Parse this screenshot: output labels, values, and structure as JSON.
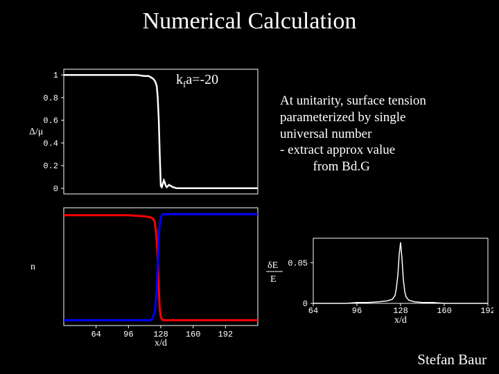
{
  "title": "Numerical Calculation",
  "annotation": "k_f a = -20",
  "description_lines": [
    "At unitarity, surface tension",
    "parameterized by single",
    "universal number",
    "- extract approx value",
    "          from Bd.G"
  ],
  "credit": "Stefan Baur",
  "chart_top": {
    "type": "line",
    "x": [
      32,
      40,
      48,
      56,
      64,
      72,
      80,
      88,
      96,
      104,
      112,
      116,
      118,
      120,
      122,
      123,
      124,
      125,
      126,
      127,
      128,
      129,
      130,
      131,
      132,
      133,
      134,
      136,
      138,
      140,
      144,
      152,
      160,
      168,
      176,
      184,
      192,
      200,
      208,
      216,
      224
    ],
    "y": [
      1.0,
      1.0,
      1.0,
      1.0,
      1.0,
      1.0,
      1.0,
      1.0,
      1.0,
      1.0,
      0.99,
      0.99,
      0.98,
      0.97,
      0.95,
      0.93,
      0.9,
      0.8,
      0.6,
      0.3,
      0.02,
      0.01,
      0.04,
      0.07,
      0.05,
      0.02,
      0.01,
      0.03,
      0.02,
      0.01,
      0.0,
      0.0,
      0.0,
      0.0,
      0.0,
      0.0,
      0.0,
      0.0,
      0.0,
      0.0,
      0.0
    ],
    "line_color": "#ffffff",
    "line_width": 2.5,
    "xlim": [
      32,
      224
    ],
    "ylim": [
      -0.05,
      1.05
    ],
    "yticks": [
      0,
      0.2,
      0.4,
      0.6,
      0.8,
      1
    ],
    "ytick_labels": [
      "0",
      "0.2",
      "0.4",
      "0.6",
      "0.8",
      "1"
    ],
    "ylabel": "Δ/μ",
    "background_color": "#000000",
    "frame_color": "#ffffff",
    "tick_fontsize": 12,
    "tick_fontfamily": "Courier New"
  },
  "chart_bottom": {
    "type": "line",
    "series": [
      {
        "name": "red",
        "color": "#ff0000",
        "line_width": 3,
        "x": [
          32,
          48,
          64,
          80,
          96,
          112,
          118,
          120,
          122,
          124,
          125,
          126,
          127,
          128,
          129,
          130,
          132,
          136,
          144,
          160,
          176,
          192,
          208,
          224
        ],
        "y": [
          0.98,
          0.98,
          0.98,
          0.98,
          0.98,
          0.97,
          0.96,
          0.95,
          0.92,
          0.75,
          0.55,
          0.3,
          0.1,
          0.03,
          0.01,
          0.0,
          0.0,
          0.0,
          0.0,
          0.0,
          0.0,
          0.0,
          0.0,
          0.0
        ]
      },
      {
        "name": "blue",
        "color": "#0000ff",
        "line_width": 3,
        "x": [
          32,
          48,
          64,
          80,
          96,
          112,
          118,
          120,
          122,
          124,
          125,
          126,
          127,
          128,
          129,
          130,
          132,
          136,
          144,
          160,
          176,
          192,
          208,
          224
        ],
        "y": [
          0.0,
          0.0,
          0.0,
          0.0,
          0.0,
          0.0,
          0.0,
          0.02,
          0.08,
          0.3,
          0.55,
          0.78,
          0.9,
          0.96,
          0.98,
          0.99,
          0.99,
          0.99,
          0.99,
          0.99,
          0.99,
          0.99,
          0.99,
          0.99
        ]
      }
    ],
    "xlim": [
      32,
      224
    ],
    "ylim": [
      -0.05,
      1.05
    ],
    "xticks": [
      64,
      96,
      128,
      160,
      192
    ],
    "xtick_labels": [
      "64",
      "96",
      "128",
      "160",
      "192"
    ],
    "xlabel": "x/d",
    "ylabel": "n",
    "background_color": "#000000",
    "frame_color": "#ffffff",
    "tick_fontsize": 12
  },
  "chart_inset": {
    "type": "line",
    "x": [
      64,
      72,
      80,
      88,
      96,
      104,
      112,
      118,
      122,
      124,
      125,
      126,
      127,
      128,
      129,
      130,
      131,
      132,
      134,
      138,
      144,
      152,
      160,
      168,
      176,
      184,
      192
    ],
    "y": [
      0.0,
      0.0,
      0.0,
      0.0,
      0.001,
      0.001,
      0.002,
      0.003,
      0.005,
      0.01,
      0.02,
      0.035,
      0.06,
      0.075,
      0.055,
      0.03,
      0.015,
      0.008,
      0.004,
      0.002,
      0.001,
      0.001,
      0.0,
      0.0,
      0.0,
      0.0,
      0.0
    ],
    "line_color": "#ffffff",
    "line_width": 1.5,
    "xlim": [
      64,
      192
    ],
    "ylim": [
      0,
      0.08
    ],
    "yticks": [
      0,
      0.05
    ],
    "ytick_labels": [
      "0",
      "0.05"
    ],
    "xticks": [
      64,
      96,
      128,
      160,
      192
    ],
    "xtick_labels": [
      "64",
      "96",
      "128",
      "160",
      "192"
    ],
    "xlabel": "x/d",
    "ylabel": "δE / E",
    "background_color": "#000000",
    "frame_color": "#ffffff",
    "tick_fontsize": 12
  }
}
